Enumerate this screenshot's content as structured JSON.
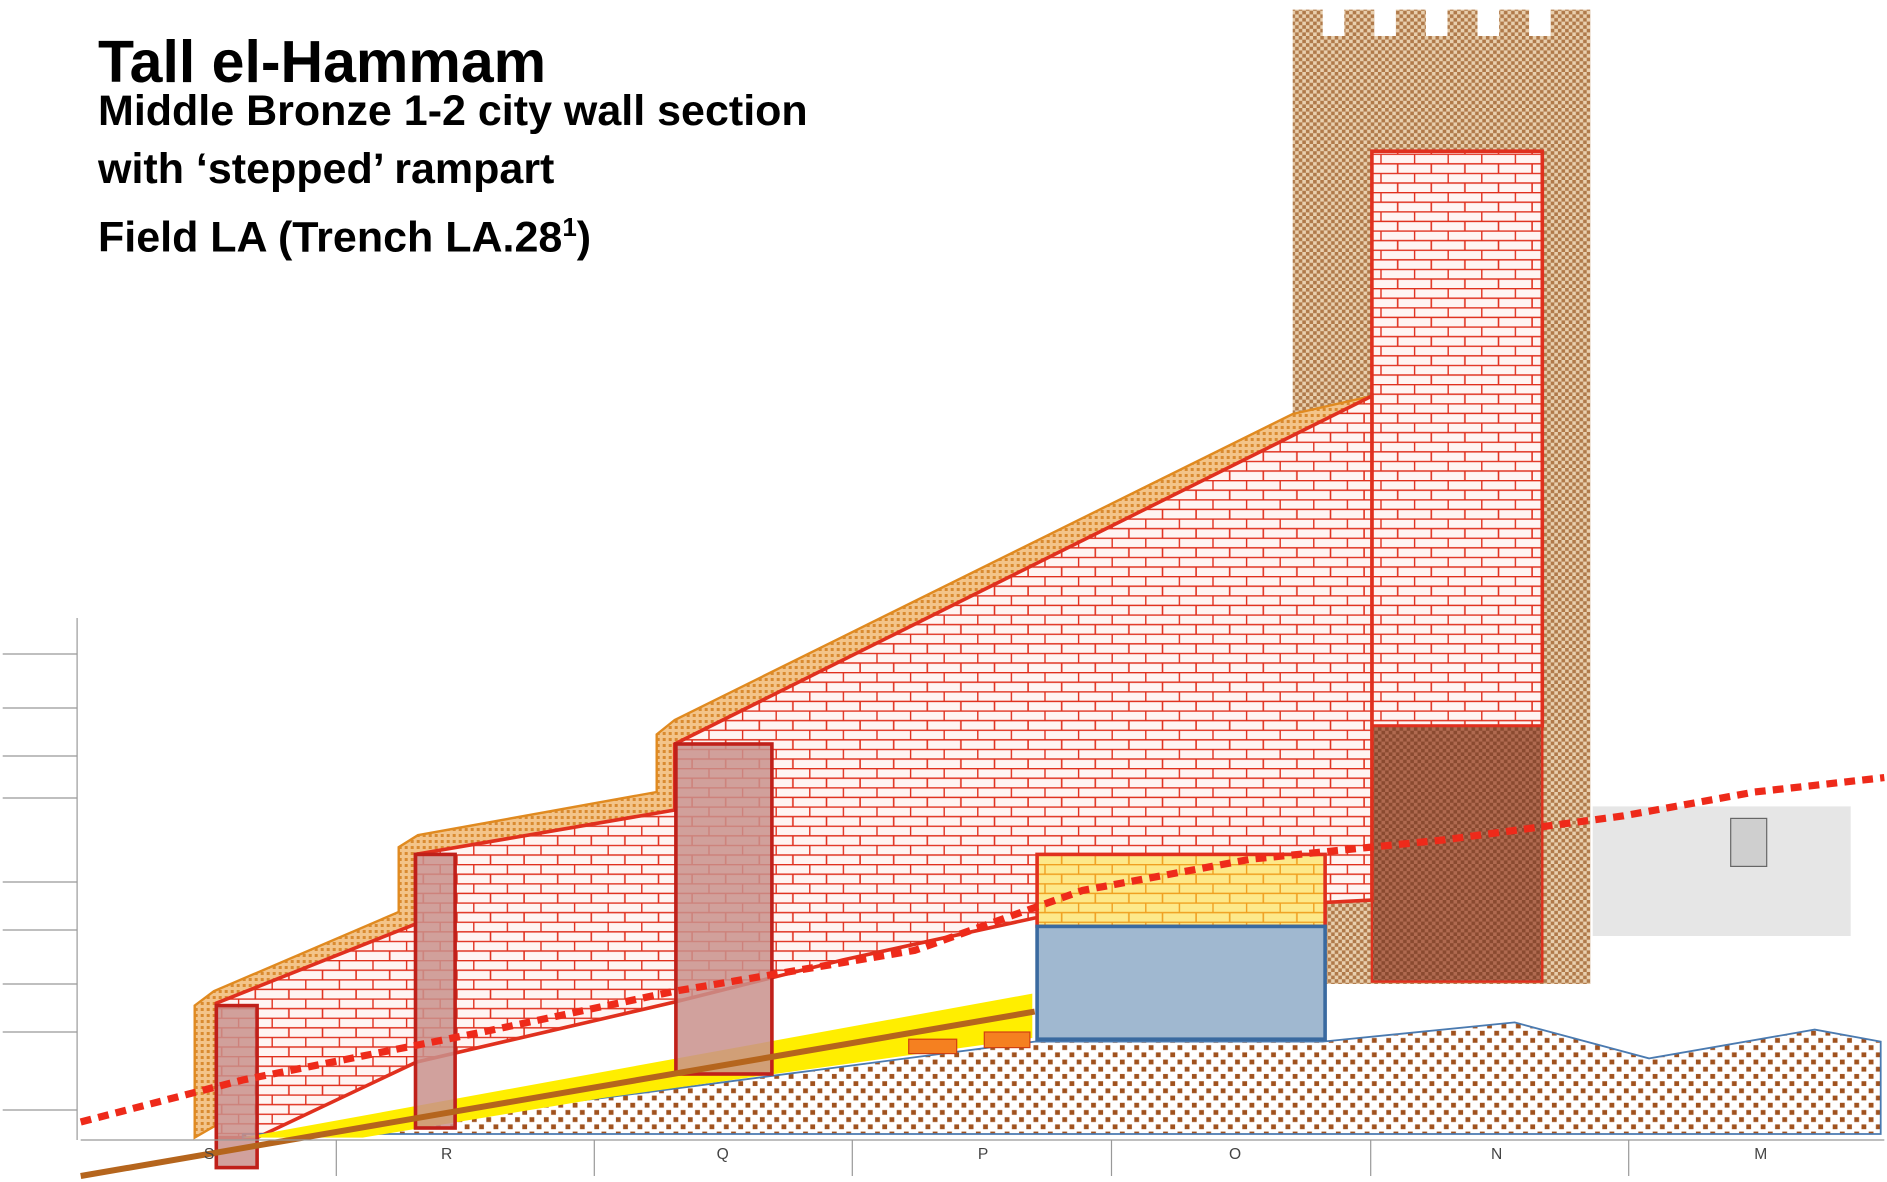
{
  "header": {
    "title": "Tall el-Hammam",
    "lines": [
      "Middle Bronze 1-2 city wall section",
      "with ‘stepped’ rampart",
      "Field LA (Trench LA.28"
    ],
    "superscript": "1",
    "closing": ")"
  },
  "grid_labels": [
    "S",
    "R",
    "Q",
    "P",
    "O",
    "N",
    "M"
  ]
}
